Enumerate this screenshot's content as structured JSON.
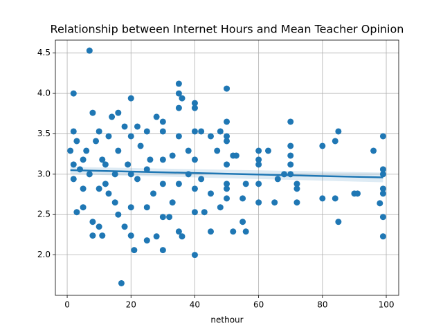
{
  "chart_data": {
    "type": "scatter",
    "title": "Relationship between Internet Hours and Mean Teacher Opinion",
    "x_label": "nethour",
    "color": "#1f77b4",
    "grid": true,
    "xlim": [
      -3.7,
      103.9
    ],
    "ylim": [
      1.5,
      4.66
    ],
    "xticks": [
      0,
      20,
      40,
      60,
      80,
      100
    ],
    "yticks": [
      {
        "value": 2,
        "label": "2.0"
      },
      2.5,
      {
        "value": 3,
        "label": "3.0"
      },
      3.5,
      {
        "value": 4,
        "label": "4.0"
      },
      4.5
    ],
    "x": [
      7,
      2,
      17,
      40,
      20,
      35,
      50,
      70,
      99,
      99,
      96,
      85,
      85,
      80,
      80,
      84,
      84,
      90,
      91,
      98,
      99,
      99,
      99,
      99,
      99,
      72,
      72,
      72,
      70,
      70,
      70,
      70,
      68,
      66,
      65,
      63,
      60,
      60,
      60,
      60,
      60,
      56,
      55,
      55,
      56,
      52,
      52,
      53,
      50,
      50,
      50,
      50,
      50,
      50,
      50,
      48,
      48,
      45,
      45,
      45,
      43,
      42,
      40,
      40,
      40,
      40,
      40,
      40,
      38,
      38,
      36,
      36,
      35,
      35,
      35,
      35,
      35,
      33,
      32,
      30,
      30,
      30,
      30,
      30,
      30,
      28,
      28,
      25,
      25,
      25,
      25,
      22,
      22,
      21,
      20,
      20,
      20,
      20,
      18,
      18,
      16,
      16,
      15,
      15,
      14,
      13,
      12,
      12,
      11,
      10,
      10,
      10,
      9,
      8,
      8,
      8,
      7,
      6,
      5,
      5,
      5,
      3,
      3,
      2,
      2,
      2,
      1,
      4,
      11,
      16,
      23,
      27,
      33,
      42,
      47,
      19,
      13,
      26
    ],
    "values": [
      4.53,
      4.0,
      1.65,
      2.0,
      3.94,
      4.12,
      4.06,
      3.65,
      3.47,
      2.23,
      3.29,
      3.53,
      2.41,
      3.35,
      2.7,
      3.41,
      2.7,
      2.76,
      2.76,
      2.64,
      3.0,
      2.82,
      2.47,
      3.06,
      2.76,
      2.65,
      2.88,
      2.82,
      3.23,
      3.35,
      3.0,
      3.12,
      3.0,
      2.94,
      2.65,
      3.29,
      3.29,
      3.18,
      3.12,
      2.88,
      2.65,
      2.29,
      2.41,
      2.7,
      2.88,
      3.23,
      2.29,
      3.23,
      3.65,
      3.47,
      3.41,
      3.12,
      2.88,
      2.82,
      2.7,
      3.53,
      2.59,
      3.47,
      2.76,
      2.29,
      2.53,
      3.53,
      3.88,
      3.82,
      3.53,
      3.18,
      2.82,
      2.53,
      3.29,
      3.0,
      3.94,
      2.23,
      4.0,
      3.82,
      3.47,
      2.88,
      2.29,
      3.23,
      2.47,
      3.65,
      3.53,
      3.18,
      2.88,
      2.47,
      2.06,
      3.71,
      2.23,
      3.53,
      3.06,
      2.59,
      2.18,
      3.59,
      2.94,
      2.06,
      3.47,
      3.0,
      2.59,
      2.24,
      3.59,
      2.35,
      3.76,
      3.29,
      3.0,
      2.65,
      3.71,
      3.47,
      3.12,
      2.88,
      3.18,
      3.53,
      2.82,
      2.35,
      3.41,
      3.76,
      2.24,
      2.41,
      3.0,
      3.29,
      3.18,
      2.82,
      2.59,
      3.41,
      2.53,
      3.53,
      3.12,
      2.94,
      3.29,
      3.06,
      2.24,
      2.5,
      3.35,
      2.76,
      2.65,
      2.94,
      3.29,
      3.12,
      2.76,
      3.18
    ],
    "regression": {
      "x": [
        1,
        99
      ],
      "y": [
        3.05,
        2.96
      ],
      "ci_lower": [
        3.0,
        2.9
      ],
      "ci_upper": [
        3.09,
        3.02
      ]
    }
  }
}
